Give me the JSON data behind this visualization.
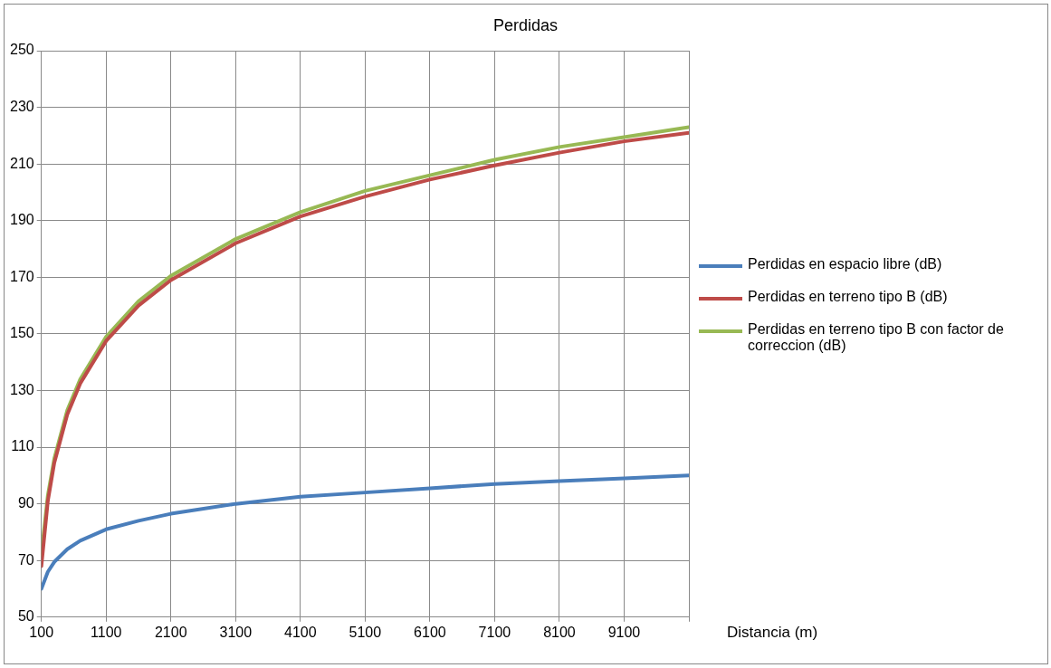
{
  "chart_data": {
    "type": "line",
    "title": "Perdidas",
    "xlabel": "Distancia (m)",
    "x": [
      100,
      200,
      300,
      500,
      700,
      1100,
      1600,
      2100,
      3100,
      4100,
      5100,
      6100,
      7100,
      8100,
      9100,
      10100
    ],
    "series": [
      {
        "name": "Perdidas en espacio libre (dB)",
        "color": "#4a7ebb",
        "values": [
          60,
          66,
          69.5,
          74,
          77,
          81,
          84,
          86.5,
          90,
          92.5,
          94,
          95.5,
          97,
          98,
          99,
          100
        ]
      },
      {
        "name": "Perdidas en terreno tipo B (dB)",
        "color": "#be4b48",
        "values": [
          68,
          91,
          104.5,
          121.5,
          132.5,
          147.5,
          160,
          169,
          182,
          191.5,
          198.5,
          204.5,
          209.5,
          214,
          218,
          221
        ]
      },
      {
        "name": "Perdidas en terreno tipo B con factor de correccion (dB)",
        "color": "#98b954",
        "values": [
          72,
          93,
          106,
          123,
          134,
          149,
          161.5,
          170.5,
          183.5,
          193,
          200.5,
          206,
          211.5,
          216,
          219.5,
          223
        ]
      }
    ],
    "xlim": [
      100,
      10100
    ],
    "xticks": [
      100,
      1100,
      2100,
      3100,
      4100,
      5100,
      6100,
      7100,
      8100,
      9100,
      {
        "value": 10100,
        "label": null
      }
    ],
    "ylim": [
      50,
      250
    ],
    "yticks": [
      50,
      70,
      90,
      110,
      130,
      150,
      170,
      190,
      210,
      230,
      250
    ],
    "grid": true,
    "legend": "right",
    "marker": "none",
    "line_style": "solid"
  }
}
